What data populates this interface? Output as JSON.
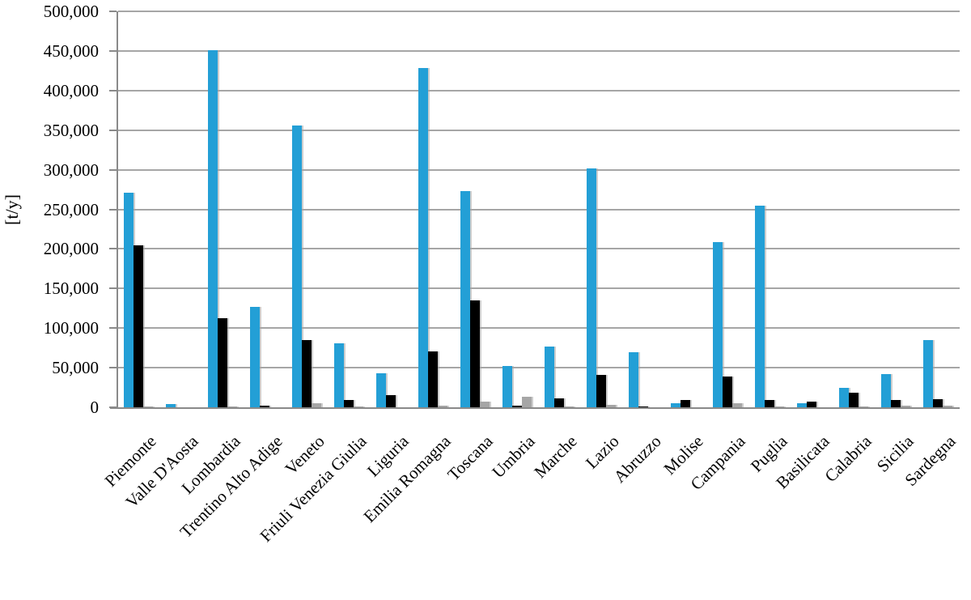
{
  "chart_data": {
    "type": "bar",
    "title": "",
    "xlabel": "",
    "ylabel": "[t/y]",
    "ylim": [
      0,
      500000
    ],
    "grid": "horizontal",
    "legend_position": "none",
    "yticks": [
      {
        "v": 0,
        "label": "0"
      },
      {
        "v": 50000,
        "label": "50,000"
      },
      {
        "v": 100000,
        "label": "100,000"
      },
      {
        "v": 150000,
        "label": "150,000"
      },
      {
        "v": 200000,
        "label": "200,000"
      },
      {
        "v": 250000,
        "label": "250,000"
      },
      {
        "v": 300000,
        "label": "300,000"
      },
      {
        "v": 350000,
        "label": "350,000"
      },
      {
        "v": 400000,
        "label": "400,000"
      },
      {
        "v": 450000,
        "label": "450,000"
      },
      {
        "v": 500000,
        "label": "500,000"
      }
    ],
    "categories": [
      "Piemonte",
      "Valle D'Aosta",
      "Lombardia",
      "Trentino Alto Adige",
      "Veneto",
      "Friuli Venezia Giulia",
      "Liguria",
      "Emilia Romagna",
      "Toscana",
      "Umbria",
      "Marche",
      "Lazio",
      "Abruzzo",
      "Molise",
      "Campania",
      "Puglia",
      "Basilicata",
      "Calabria",
      "Sicilia",
      "Sardegna"
    ],
    "series": [
      {
        "name": "blue",
        "color": "#239fd6",
        "values": [
          271000,
          4000,
          451000,
          127000,
          356000,
          81000,
          43000,
          428000,
          273000,
          52000,
          77000,
          302000,
          70000,
          5000,
          209000,
          255000,
          5000,
          25000,
          42000,
          85000
        ]
      },
      {
        "name": "black",
        "color": "#000000",
        "values": [
          205000,
          500,
          112000,
          2000,
          85000,
          9000,
          15000,
          71000,
          135000,
          2500,
          11000,
          41000,
          1500,
          9000,
          39000,
          9500,
          7000,
          18000,
          9500,
          10000
        ]
      },
      {
        "name": "gray",
        "color": "#a6a6a6",
        "values": [
          800,
          200,
          800,
          400,
          5000,
          800,
          500,
          2500,
          7000,
          13000,
          1000,
          3000,
          400,
          400,
          5000,
          1000,
          500,
          1500,
          2000,
          2500
        ]
      }
    ]
  },
  "colors": {
    "background": "#ffffff",
    "gridline": "#a6a6a6",
    "axis": "#8a8a8a",
    "text": "#000000"
  }
}
